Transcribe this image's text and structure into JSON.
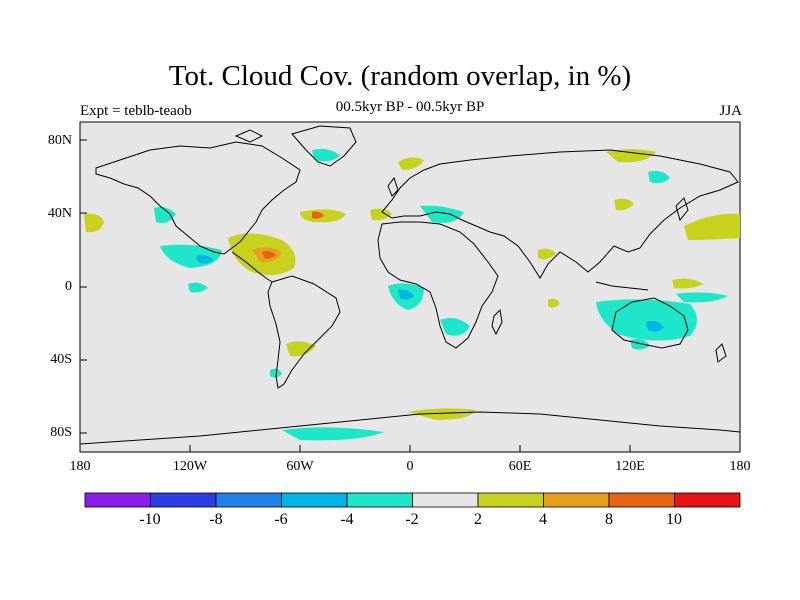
{
  "title": "Tot. Cloud Cov. (random overlap, in %)",
  "subtitle_left": "Expt = teblb-teaob",
  "subtitle_center": "00.5kyr BP - 00.5kyr BP",
  "subtitle_right": "JJA",
  "lat_labels": [
    "80N",
    "40N",
    "0",
    "40S",
    "80S"
  ],
  "lon_labels": [
    "180",
    "120W",
    "60W",
    "0",
    "60E",
    "120E",
    "180"
  ],
  "colorbar": {
    "labels": [
      "-10",
      "-8",
      "-6",
      "-4",
      "-2",
      "2",
      "4",
      "8",
      "10"
    ],
    "colors": [
      "#8a1ee6",
      "#2d3ce6",
      "#1e82e6",
      "#00b4e6",
      "#1ee6c8",
      "#e6e6e6",
      "#c8d21e",
      "#e6a01e",
      "#e66414",
      "#e61414"
    ]
  },
  "colors": {
    "ocean_background": "#e6e6e6",
    "coastline": "#000000"
  }
}
